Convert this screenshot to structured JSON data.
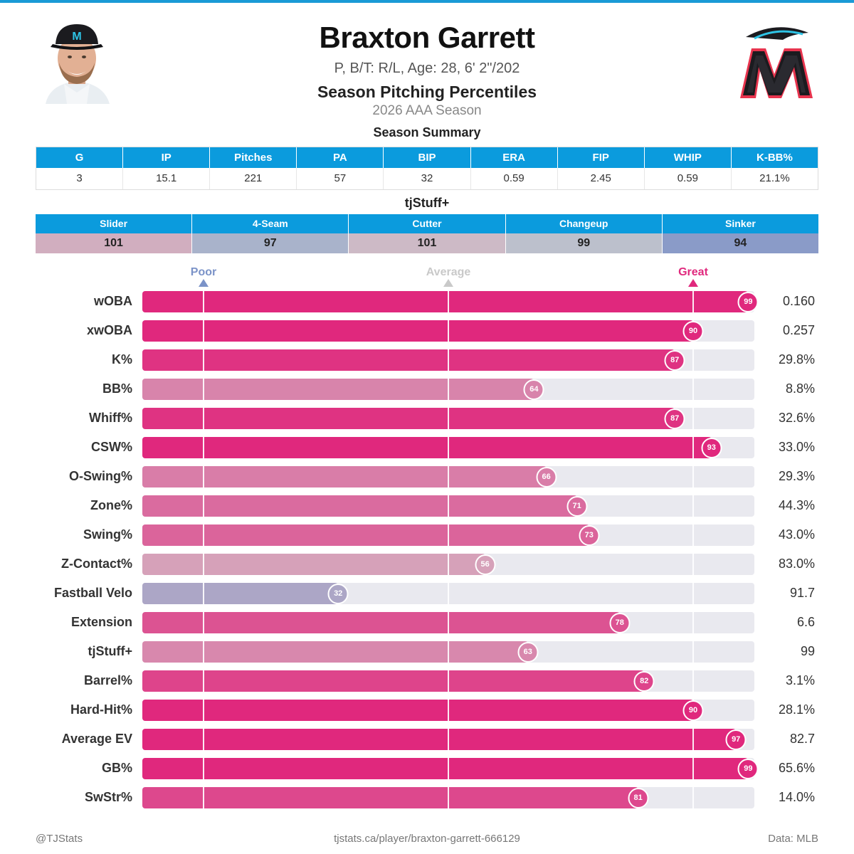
{
  "header": {
    "player_name": "Braxton Garrett",
    "bio": "P, B/T: R/L, Age: 28, 6' 2\"/202",
    "report_title": "Season Pitching Percentiles",
    "season": "2026 AAA Season",
    "logo_letter": "M"
  },
  "colors": {
    "accent": "#0b9bdd",
    "great": "#e0287d",
    "poor": "#7b93c8",
    "average": "#c9c9c9"
  },
  "summary": {
    "title": "Season Summary",
    "headers": [
      "G",
      "IP",
      "Pitches",
      "PA",
      "BIP",
      "ERA",
      "FIP",
      "WHIP",
      "K-BB%"
    ],
    "values": [
      "3",
      "15.1",
      "221",
      "57",
      "32",
      "0.59",
      "2.45",
      "0.59",
      "21.1%"
    ]
  },
  "stuff": {
    "title": "tjStuff+",
    "headers": [
      "Slider",
      "4-Seam",
      "Cutter",
      "Changeup",
      "Sinker"
    ],
    "values": [
      "101",
      "97",
      "101",
      "99",
      "94"
    ],
    "cell_colors": [
      "#d1aebf",
      "#a9b3cb",
      "#cdbac6",
      "#bcc0cc",
      "#8a9bc8"
    ]
  },
  "chart_data": {
    "type": "bar",
    "orientation": "horizontal",
    "xlim": [
      0,
      100
    ],
    "scale_labels": {
      "poor": "Poor",
      "average": "Average",
      "great": "Great"
    },
    "scale_positions": {
      "poor": 10,
      "average": 50,
      "great": 90
    },
    "categories": [
      "wOBA",
      "xwOBA",
      "K%",
      "BB%",
      "Whiff%",
      "CSW%",
      "O-Swing%",
      "Zone%",
      "Swing%",
      "Z-Contact%",
      "Fastball Velo",
      "Extension",
      "tjStuff+",
      "Barrel%",
      "Hard-Hit%",
      "Average EV",
      "GB%",
      "SwStr%"
    ],
    "percentiles": [
      99,
      90,
      87,
      64,
      87,
      93,
      66,
      71,
      73,
      56,
      32,
      78,
      63,
      82,
      90,
      97,
      99,
      81
    ],
    "stat_values": [
      "0.160",
      "0.257",
      "29.8%",
      "8.8%",
      "32.6%",
      "33.0%",
      "29.3%",
      "44.3%",
      "43.0%",
      "83.0%",
      "91.7",
      "6.6",
      "99",
      "3.1%",
      "28.1%",
      "82.7",
      "65.6%",
      "14.0%"
    ]
  },
  "footer": {
    "left": "@TJStats",
    "center": "tjstats.ca/player/braxton-garrett-666129",
    "right": "Data: MLB"
  }
}
